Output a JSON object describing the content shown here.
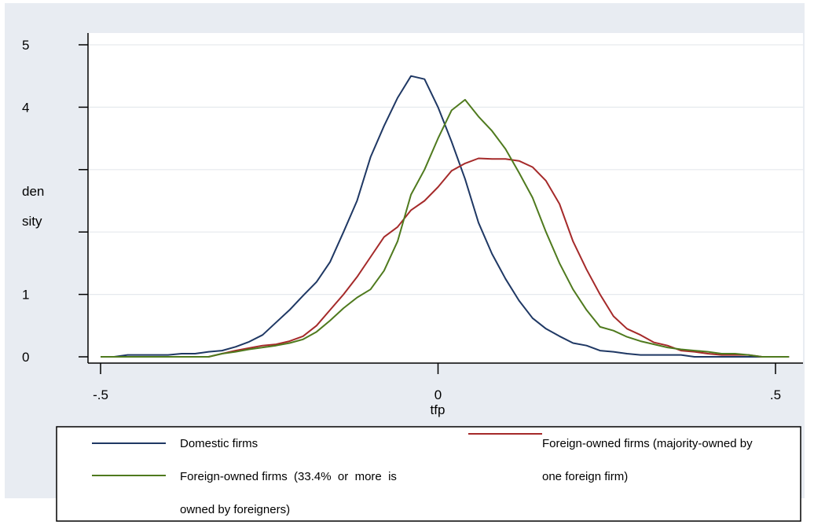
{
  "chart_data": {
    "type": "line",
    "xlabel": "tfp",
    "ylabel_lines": [
      "den",
      "sity"
    ],
    "xlim": [
      -0.5,
      0.5
    ],
    "ylim": [
      0,
      5
    ],
    "x_ticks": [
      -0.5,
      0,
      0.5
    ],
    "x_tick_labels": [
      "-.5",
      "0",
      ".5"
    ],
    "y_ticks": [
      0,
      1,
      2,
      3,
      4,
      5
    ],
    "y_tick_labels": [
      "0",
      "1",
      "",
      "",
      "4",
      "5"
    ],
    "grid": true,
    "legend_position": "bottom",
    "colors": {
      "plot_region": "#e8ecf2",
      "domestic": "#1f3864",
      "majority": "#a52a2a",
      "third": "#4f7a1e"
    },
    "series": [
      {
        "name": "Domestic firms",
        "color": "#1f3864",
        "x": [
          -0.5,
          -0.48,
          -0.46,
          -0.44,
          -0.42,
          -0.4,
          -0.38,
          -0.36,
          -0.34,
          -0.32,
          -0.3,
          -0.28,
          -0.26,
          -0.24,
          -0.22,
          -0.2,
          -0.18,
          -0.16,
          -0.14,
          -0.12,
          -0.1,
          -0.08,
          -0.06,
          -0.04,
          -0.02,
          0.0,
          0.02,
          0.04,
          0.06,
          0.08,
          0.1,
          0.12,
          0.14,
          0.16,
          0.18,
          0.2,
          0.22,
          0.24,
          0.26,
          0.28,
          0.3,
          0.32,
          0.34,
          0.36,
          0.38,
          0.4,
          0.42,
          0.44,
          0.46,
          0.48,
          0.5,
          0.52
        ],
        "y": [
          0,
          0,
          0.03,
          0.03,
          0.03,
          0.03,
          0.05,
          0.05,
          0.08,
          0.1,
          0.16,
          0.24,
          0.35,
          0.55,
          0.75,
          0.98,
          1.2,
          1.52,
          2.0,
          2.5,
          3.2,
          3.7,
          4.15,
          4.5,
          4.45,
          4.0,
          3.45,
          2.85,
          2.15,
          1.65,
          1.25,
          0.9,
          0.62,
          0.45,
          0.33,
          0.22,
          0.18,
          0.1,
          0.08,
          0.05,
          0.03,
          0.03,
          0.03,
          0.03,
          0,
          0,
          0,
          0,
          0,
          0,
          0,
          0
        ]
      },
      {
        "name": "Foreign-owned firms (majority-owned by one foreign firm)",
        "color": "#a52a2a",
        "x": [
          -0.5,
          -0.48,
          -0.46,
          -0.44,
          -0.42,
          -0.4,
          -0.38,
          -0.36,
          -0.34,
          -0.32,
          -0.3,
          -0.28,
          -0.26,
          -0.24,
          -0.22,
          -0.2,
          -0.18,
          -0.16,
          -0.14,
          -0.12,
          -0.1,
          -0.08,
          -0.06,
          -0.04,
          -0.02,
          0.0,
          0.02,
          0.04,
          0.06,
          0.08,
          0.1,
          0.12,
          0.14,
          0.16,
          0.18,
          0.2,
          0.22,
          0.24,
          0.26,
          0.28,
          0.3,
          0.32,
          0.34,
          0.36,
          0.38,
          0.4,
          0.42,
          0.44,
          0.46,
          0.48,
          0.5,
          0.52
        ],
        "y": [
          0,
          0,
          0,
          0,
          0,
          0,
          0,
          0,
          0,
          0.05,
          0.1,
          0.14,
          0.18,
          0.2,
          0.25,
          0.33,
          0.5,
          0.75,
          1.0,
          1.28,
          1.6,
          1.92,
          2.08,
          2.35,
          2.5,
          2.72,
          2.98,
          3.1,
          3.18,
          3.17,
          3.17,
          3.14,
          3.04,
          2.82,
          2.45,
          1.85,
          1.4,
          1.0,
          0.65,
          0.45,
          0.35,
          0.23,
          0.18,
          0.1,
          0.08,
          0.05,
          0.03,
          0.03,
          0.03,
          0,
          0,
          0
        ]
      },
      {
        "name": "Foreign-owned firms (33.4% or more is owned by foreigners)",
        "color": "#4f7a1e",
        "x": [
          -0.5,
          -0.48,
          -0.46,
          -0.44,
          -0.42,
          -0.4,
          -0.38,
          -0.36,
          -0.34,
          -0.32,
          -0.3,
          -0.28,
          -0.26,
          -0.24,
          -0.22,
          -0.2,
          -0.18,
          -0.16,
          -0.14,
          -0.12,
          -0.1,
          -0.08,
          -0.06,
          -0.04,
          -0.02,
          0.0,
          0.02,
          0.04,
          0.06,
          0.08,
          0.1,
          0.12,
          0.14,
          0.16,
          0.18,
          0.2,
          0.22,
          0.24,
          0.26,
          0.28,
          0.3,
          0.32,
          0.34,
          0.36,
          0.38,
          0.4,
          0.42,
          0.44,
          0.46,
          0.48,
          0.5,
          0.52
        ],
        "y": [
          0,
          0,
          0,
          0,
          0,
          0,
          0,
          0,
          0,
          0.05,
          0.08,
          0.12,
          0.15,
          0.18,
          0.22,
          0.28,
          0.4,
          0.58,
          0.78,
          0.95,
          1.08,
          1.38,
          1.85,
          2.6,
          3.0,
          3.5,
          3.95,
          4.12,
          3.85,
          3.62,
          3.33,
          2.95,
          2.55,
          2.0,
          1.5,
          1.08,
          0.75,
          0.48,
          0.42,
          0.32,
          0.25,
          0.2,
          0.15,
          0.12,
          0.1,
          0.08,
          0.05,
          0.05,
          0.03,
          0,
          0,
          0
        ]
      }
    ]
  },
  "legend": {
    "domestic": "Domestic firms",
    "majority_line1": "Foreign-owned firms (majority-owned by",
    "majority_line2": "one foreign firm)",
    "third_line1": "Foreign-owned firms  (33.4%  or  more  is",
    "third_line2": "owned by foreigners)"
  }
}
